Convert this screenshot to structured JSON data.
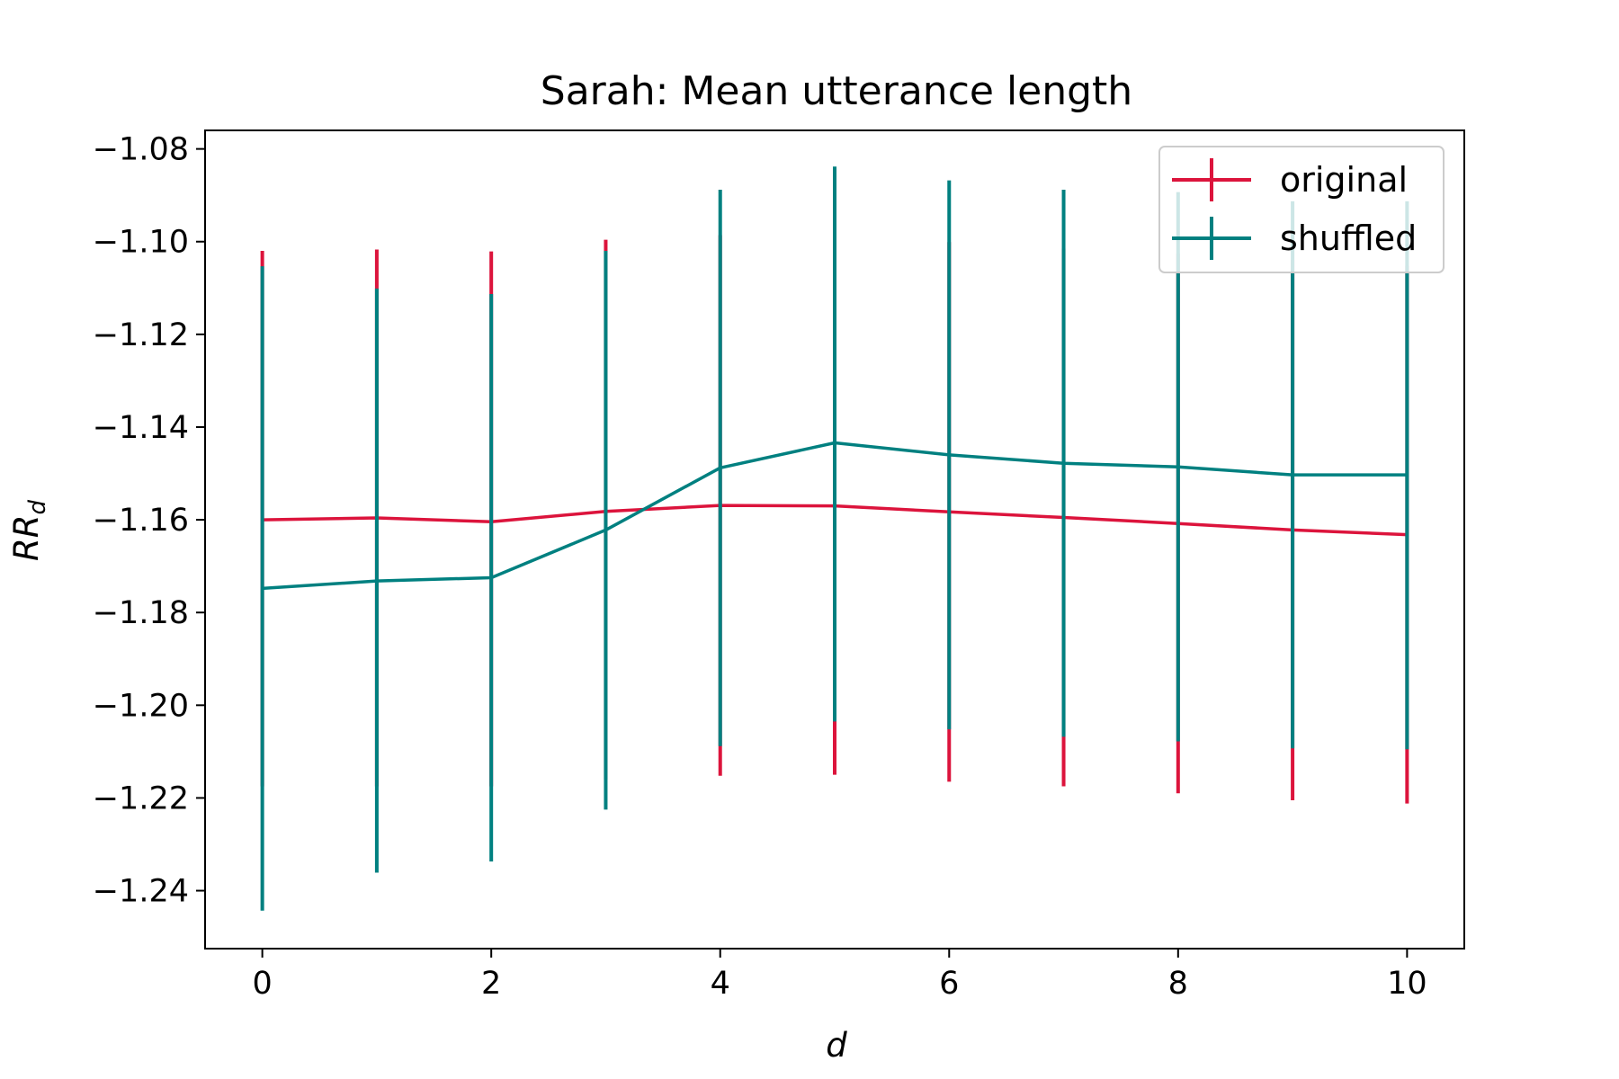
{
  "chart_data": {
    "type": "line",
    "title": "Sarah: Mean utterance length",
    "xlabel": "d",
    "ylabel_main": "RR",
    "ylabel_sub": "d",
    "x": [
      0,
      1,
      2,
      3,
      4,
      5,
      6,
      7,
      8,
      9,
      10
    ],
    "xlim": [
      -0.5,
      10.5
    ],
    "ylim": [
      -1.2525,
      -1.076
    ],
    "xticks": [
      0,
      2,
      4,
      6,
      8,
      10
    ],
    "yticks": [
      -1.08,
      -1.1,
      -1.12,
      -1.14,
      -1.16,
      -1.18,
      -1.2,
      -1.22,
      -1.24
    ],
    "ytick_labels": [
      "−1.08",
      "−1.10",
      "−1.12",
      "−1.14",
      "−1.16",
      "−1.18",
      "−1.20",
      "−1.22",
      "−1.24"
    ],
    "xtick_labels": [
      "0",
      "2",
      "4",
      "6",
      "8",
      "10"
    ],
    "legend_position": "top-right",
    "grid": false,
    "series": [
      {
        "name": "original",
        "color": "#dc143c",
        "values": [
          -1.16,
          -1.1596,
          -1.1604,
          -1.1582,
          -1.1569,
          -1.157,
          -1.1583,
          -1.1595,
          -1.1608,
          -1.1622,
          -1.1632
        ],
        "err_low": [
          -1.2175,
          -1.2175,
          -1.2175,
          -1.216,
          -1.2152,
          -1.215,
          -1.2165,
          -1.2175,
          -1.219,
          -1.2205,
          -1.2212
        ],
        "err_high": [
          -1.102,
          -1.1017,
          -1.1021,
          -1.0996,
          -1.0986,
          -1.099,
          -1.1001,
          -1.1015,
          -1.1026,
          -1.1039,
          -1.1052
        ]
      },
      {
        "name": "shuffled",
        "color": "#008080",
        "values": [
          -1.1748,
          -1.1732,
          -1.1725,
          -1.1622,
          -1.1488,
          -1.1434,
          -1.146,
          -1.1478,
          -1.1486,
          -1.1503,
          -1.1503
        ],
        "err_low": [
          -1.2443,
          -1.2361,
          -1.2337,
          -1.2225,
          -1.2088,
          -1.2035,
          -1.2052,
          -1.2068,
          -1.2078,
          -1.2093,
          -1.2095
        ],
        "err_high": [
          -1.1053,
          -1.1101,
          -1.1113,
          -1.102,
          -1.0888,
          -1.0838,
          -1.0868,
          -1.0888,
          -1.0893,
          -1.0913,
          -1.0913
        ]
      }
    ]
  }
}
